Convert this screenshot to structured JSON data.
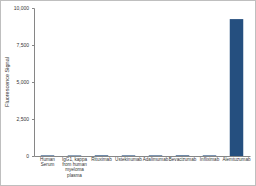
{
  "chart_data": {
    "type": "bar",
    "y_label": "Fluorescence Signal",
    "categories": [
      "Human Serum",
      "IgG1, kappa from human myeloma plasma",
      "Rituximab",
      "Ustekinumab",
      "Adalimumab",
      "Bevacizumab",
      "Infliximab",
      "Alemtuzumab"
    ],
    "values": [
      40,
      35,
      45,
      40,
      40,
      45,
      40,
      9250
    ],
    "color": "#254f7f",
    "ylim": [
      0,
      10000
    ],
    "yticks": [
      0,
      {
        "value": 2500,
        "label": "2,500"
      },
      {
        "value": 5000,
        "label": "5,000"
      },
      {
        "value": 7500,
        "label": "7,500"
      },
      {
        "value": 10000,
        "label": "10,000"
      }
    ],
    "grid": false
  }
}
